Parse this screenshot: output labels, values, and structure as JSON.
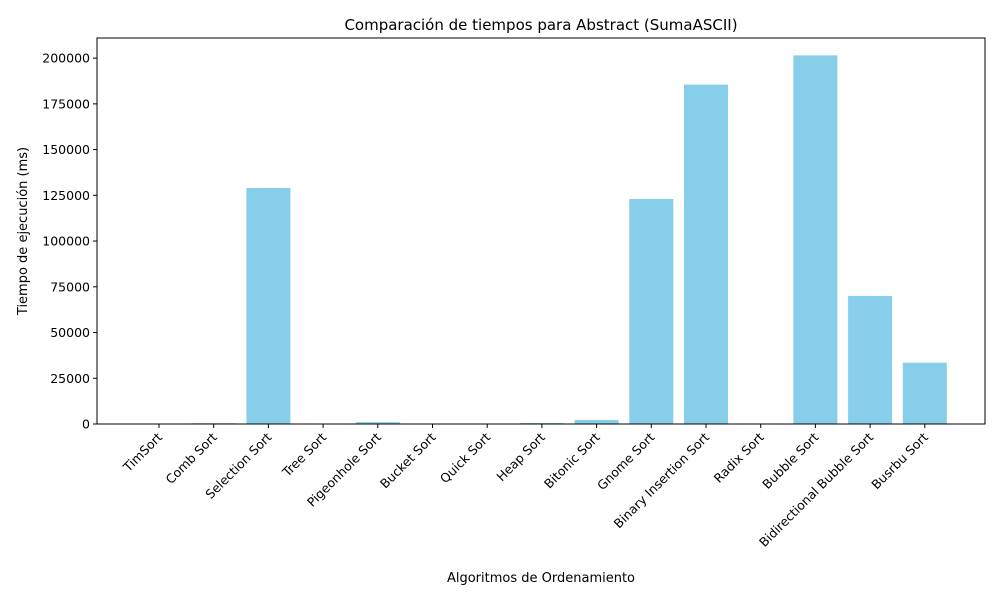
{
  "chart_data": {
    "type": "bar",
    "title": "Comparación de tiempos para Abstract (SumaASCII)",
    "xlabel": "Algoritmos de Ordenamiento",
    "ylabel": "Tiempo de ejecución (ms)",
    "categories": [
      "TimSort",
      "Comb Sort",
      "Selection Sort",
      "Tree Sort",
      "Pigeonhole Sort",
      "Bucket Sort",
      "Quick Sort",
      "Heap Sort",
      "Bitonic Sort",
      "Gnome Sort",
      "Binary Insertion Sort",
      "Radix Sort",
      "Bubble Sort",
      "Bidirectional Bubble Sort",
      "Busrbu Sort"
    ],
    "values": [
      30,
      400,
      129000,
      80,
      1000,
      60,
      50,
      500,
      2200,
      123000,
      185500,
      300,
      201500,
      70000,
      33500
    ],
    "ylim": [
      0,
      211000
    ],
    "yticks": [
      0,
      25000,
      50000,
      75000,
      100000,
      125000,
      150000,
      175000,
      200000
    ],
    "bar_color": "#87ceeb",
    "grid": false
  }
}
